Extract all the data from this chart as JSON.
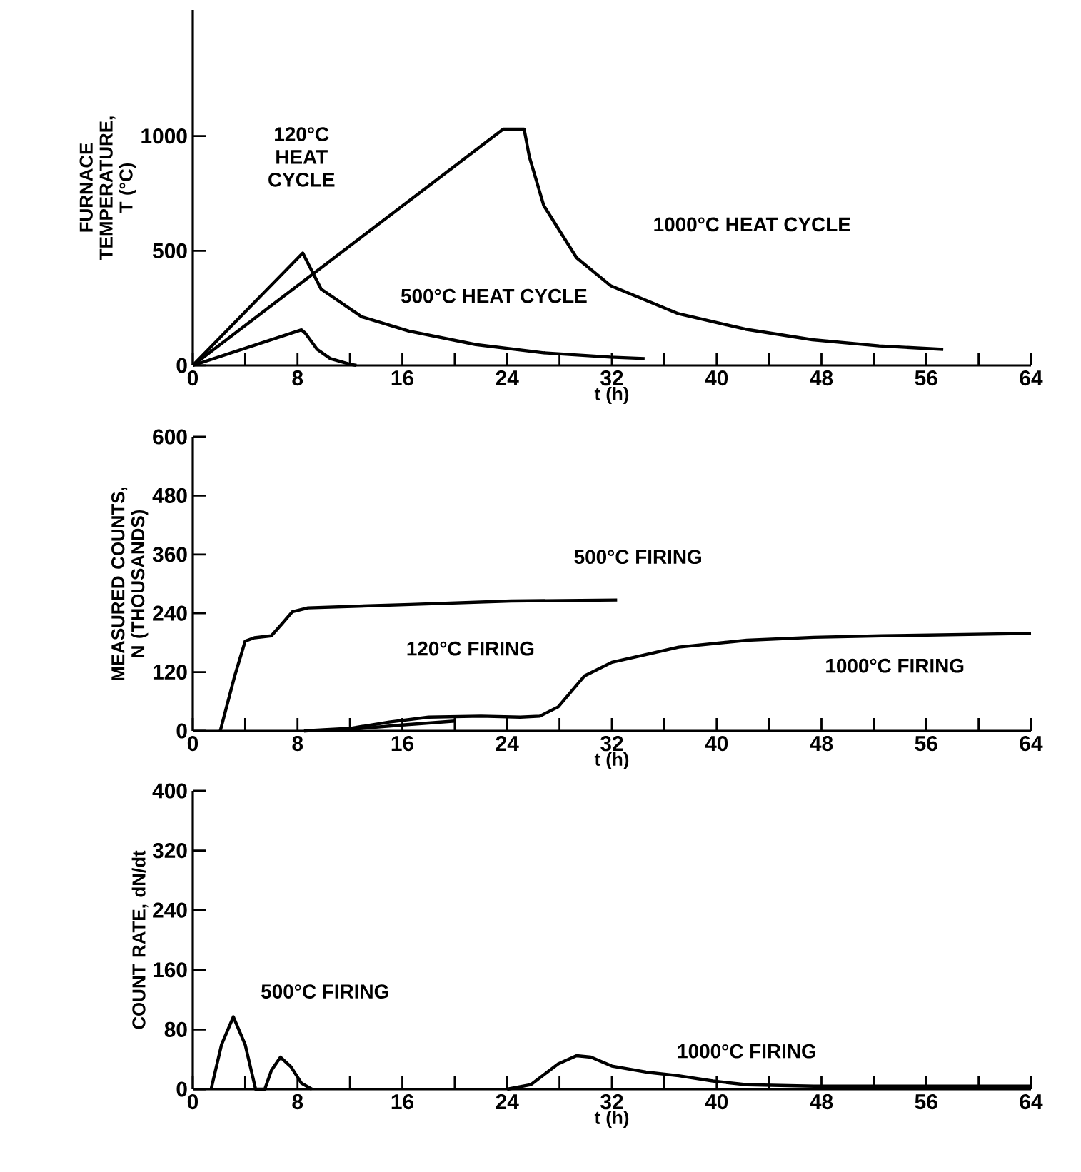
{
  "chart_data": [
    {
      "type": "line",
      "xlabel": "t (h)",
      "ylabel": "FURNACE TEMPERATURE, T (°C)",
      "xlim": [
        0,
        64
      ],
      "ylim": [
        0,
        1550
      ],
      "xticks": [
        0,
        {
          "value": 4,
          "label": null
        },
        8,
        {
          "value": 12,
          "label": null
        },
        16,
        {
          "value": 20,
          "label": null
        },
        24,
        {
          "value": 28,
          "label": null
        },
        32,
        {
          "value": 36,
          "label": null
        },
        40,
        {
          "value": 44,
          "label": null
        },
        48,
        {
          "value": 52,
          "label": null
        },
        56,
        {
          "value": 60,
          "label": null
        },
        64
      ],
      "yticks": [
        0,
        500,
        1000
      ],
      "series": [
        {
          "color": "#000000",
          "x": [
            0,
            8.3,
            8.6,
            9.5,
            10.5,
            12,
            12.5
          ],
          "values": [
            0,
            155,
            140,
            70,
            30,
            5,
            0
          ]
        },
        {
          "color": "#000000",
          "x": [
            0,
            8.4,
            9.8,
            12.9,
            16.5,
            21.6,
            26.8,
            31.9,
            34.5
          ],
          "values": [
            0,
            490,
            333,
            212,
            150,
            91,
            55,
            36,
            30
          ]
        },
        {
          "color": "#000000",
          "x": [
            0,
            23.7,
            25.3,
            25.7,
            26.8,
            29.3,
            31.9,
            37,
            42.2,
            47.3,
            52.4,
            57.3
          ],
          "values": [
            0,
            1030,
            1030,
            909,
            697,
            470,
            348,
            227,
            158,
            112,
            85,
            70
          ]
        }
      ],
      "annotations": [
        "120°C HEAT CYCLE",
        "500°C HEAT CYCLE",
        "1000°C HEAT CYCLE"
      ]
    },
    {
      "type": "line",
      "xlabel": "t (h)",
      "ylabel": "MEASURED COUNTS, N (THOUSANDS)",
      "xlim": [
        0,
        64
      ],
      "ylim": [
        0,
        600
      ],
      "xticks": [
        0,
        {
          "value": 4,
          "label": null
        },
        8,
        {
          "value": 12,
          "label": null
        },
        16,
        {
          "value": 20,
          "label": null
        },
        24,
        {
          "value": 28,
          "label": null
        },
        32,
        {
          "value": 36,
          "label": null
        },
        40,
        {
          "value": 44,
          "label": null
        },
        48,
        {
          "value": 52,
          "label": null
        },
        56,
        {
          "value": 60,
          "label": null
        },
        64
      ],
      "yticks": [
        0,
        120,
        240,
        360,
        480,
        600
      ],
      "series": [
        {
          "color": "#000000",
          "x": [
            2.1,
            3.2,
            4,
            4.7,
            6,
            6.8,
            7.6,
            8.8,
            16.6,
            24.3,
            32.4
          ],
          "values": [
            0,
            112,
            183,
            190,
            194,
            218,
            243,
            251,
            258,
            265,
            267
          ]
        },
        {
          "color": "#000000",
          "x": [
            8.5,
            12,
            16,
            20
          ],
          "values": [
            0,
            3,
            12,
            20
          ]
        },
        {
          "color": "#000000",
          "x": [
            8.5,
            12,
            15,
            18,
            22,
            25,
            26.5,
            27.9,
            29.9,
            32,
            37.1,
            42.3,
            47.4,
            52.6,
            64
          ],
          "values": [
            0,
            5,
            18,
            28,
            30,
            28,
            30,
            49,
            112,
            140,
            171,
            185,
            191,
            194,
            199
          ]
        }
      ],
      "annotations": [
        "500°C FIRING",
        "120°C FIRING",
        "1000°C FIRING"
      ]
    },
    {
      "type": "line",
      "xlabel": "t (h)",
      "ylabel": "COUNT RATE, dN/dt",
      "xlim": [
        0,
        64
      ],
      "ylim": [
        0,
        400
      ],
      "xticks": [
        0,
        {
          "value": 4,
          "label": null
        },
        8,
        {
          "value": 12,
          "label": null
        },
        16,
        {
          "value": 20,
          "label": null
        },
        24,
        {
          "value": 28,
          "label": null
        },
        32,
        {
          "value": 36,
          "label": null
        },
        40,
        {
          "value": 44,
          "label": null
        },
        48,
        {
          "value": 52,
          "label": null
        },
        56,
        {
          "value": 60,
          "label": null
        },
        64
      ],
      "yticks": [
        0,
        80,
        160,
        240,
        320,
        400
      ],
      "series": [
        {
          "color": "#000000",
          "x": [
            1.4,
            2.2,
            3.1,
            4,
            4.8,
            5.5,
            6,
            6.7,
            7.5,
            8.3,
            9.1
          ],
          "values": [
            0,
            60,
            97,
            60,
            0,
            0,
            25,
            43,
            30,
            8,
            0
          ]
        },
        {
          "color": "#000000",
          "x": [
            24,
            25.8,
            27.9,
            29.3,
            30.4,
            32,
            34.6,
            37.1,
            39.7,
            42.3,
            47.4,
            64
          ],
          "values": [
            0,
            6,
            34,
            45,
            43,
            31,
            23,
            18,
            11,
            6,
            4,
            4
          ]
        }
      ],
      "annotations": [
        "500°C FIRING",
        "1000°C FIRING"
      ]
    }
  ]
}
